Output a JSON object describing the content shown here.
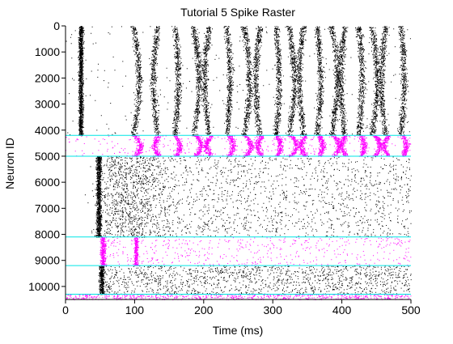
{
  "chart_data": {
    "type": "scatter",
    "title": "Tutorial 5 Spike Raster",
    "xlabel": "Time (ms)",
    "ylabel": "Neuron ID",
    "xlim": [
      0,
      500
    ],
    "ylim": [
      0,
      10500
    ],
    "y_inverted": true,
    "x_ticks": [
      0,
      100,
      200,
      300,
      400,
      500
    ],
    "y_ticks": [
      0,
      1000,
      2000,
      3000,
      4000,
      5000,
      6000,
      7000,
      8000,
      9000,
      10000
    ],
    "grid": false,
    "legend": "none",
    "colors": {
      "background": "#ffffff",
      "excitatory_spike": "#000000",
      "inhibitory_spike": "#ff00ff",
      "boundary_line": "#00e5e5"
    },
    "boundary_lines_neuron_id": [
      4200,
      5000,
      8100,
      9200,
      10300
    ],
    "populations": [
      {
        "neuron_range": [
          0,
          4200
        ],
        "spike_color": "#000000",
        "initial_volley_ms": 22,
        "wave_times_ms": [
          98,
          133,
          158,
          185,
          207,
          233,
          258,
          281,
          304,
          323,
          344,
          364,
          385,
          404,
          424,
          443,
          463,
          485
        ]
      },
      {
        "neuron_range": [
          4200,
          5000
        ],
        "spike_color": "#ff00ff",
        "wave_times_ms": [
          100,
          135,
          160,
          188,
          210,
          237,
          260,
          284,
          306,
          326,
          347,
          367,
          388,
          406,
          427,
          447,
          467,
          488
        ]
      },
      {
        "neuron_range": [
          5000,
          8100
        ],
        "spike_color": "#000000",
        "initial_volley_ms": 48,
        "activity": "asynchronous irregular",
        "density_peak_ms": 95
      },
      {
        "neuron_range": [
          8100,
          9200
        ],
        "spike_color": "#ff00ff",
        "initial_volley_ms": 54,
        "secondary_volley_ms": 102,
        "activity": "sparse irregular"
      },
      {
        "neuron_range": [
          9200,
          10300
        ],
        "spike_color": "#000000",
        "initial_volley_ms": 52,
        "activity": "asynchronous irregular"
      },
      {
        "neuron_range": [
          10300,
          10500
        ],
        "spike_color": "#ff00ff",
        "activity": "dense irregular"
      }
    ]
  }
}
